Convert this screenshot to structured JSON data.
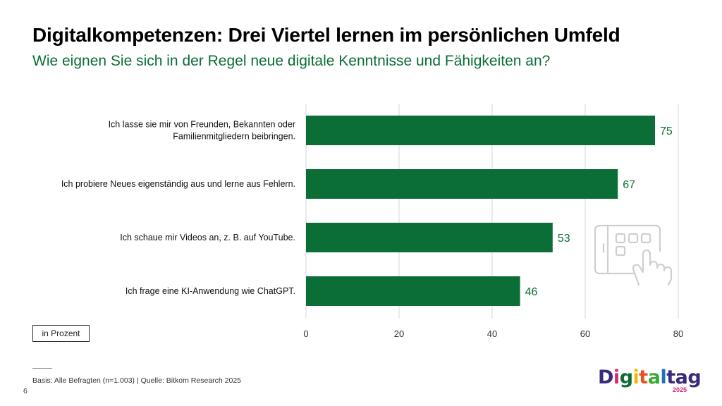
{
  "title": "Digitalkompetenzen: Drei Viertel lernen im persönlichen Umfeld",
  "subtitle": "Wie eignen Sie sich in der Regel neue digitale Kenntnisse und Fähigkeiten an?",
  "unit_label": "in Prozent",
  "footnote": "Basis: Alle Befragten (n=1.003) | Quelle: Bitkom Research 2025",
  "page_number": "6",
  "logo": {
    "letters": [
      {
        "ch": "D",
        "color": "#3b2a7a"
      },
      {
        "ch": "i",
        "color": "#d9257a"
      },
      {
        "ch": "g",
        "color": "#0b6e36"
      },
      {
        "ch": "i",
        "color": "#f2b800"
      },
      {
        "ch": "t",
        "color": "#e8501f"
      },
      {
        "ch": "a",
        "color": "#3aaa35"
      },
      {
        "ch": "l",
        "color": "#1d71b8"
      },
      {
        "ch": "t",
        "color": "#3b2a7a"
      },
      {
        "ch": "a",
        "color": "#3b2a7a"
      },
      {
        "ch": "g",
        "color": "#3b2a7a"
      }
    ],
    "year": "2025"
  },
  "colors": {
    "bar": "#0b6e36",
    "value_text": "#0b6e36",
    "grid": "#d6d6d6"
  },
  "chart_data": {
    "type": "bar",
    "orientation": "horizontal",
    "categories": [
      [
        "Ich lasse sie mir von Freunden, Bekannten oder",
        "Familienmitgliedern beibringen."
      ],
      [
        "Ich probiere Neues eigenständig aus und lerne aus Fehlern."
      ],
      [
        "Ich schaue mir Videos an, z. B. auf YouTube."
      ],
      [
        "Ich frage eine KI-Anwendung wie ChatGPT."
      ]
    ],
    "values": [
      75,
      67,
      53,
      46
    ],
    "xlim": [
      0,
      80
    ],
    "xticks": [
      0,
      20,
      40,
      60,
      80
    ],
    "xlabel": "",
    "ylabel": "",
    "grid": true
  }
}
